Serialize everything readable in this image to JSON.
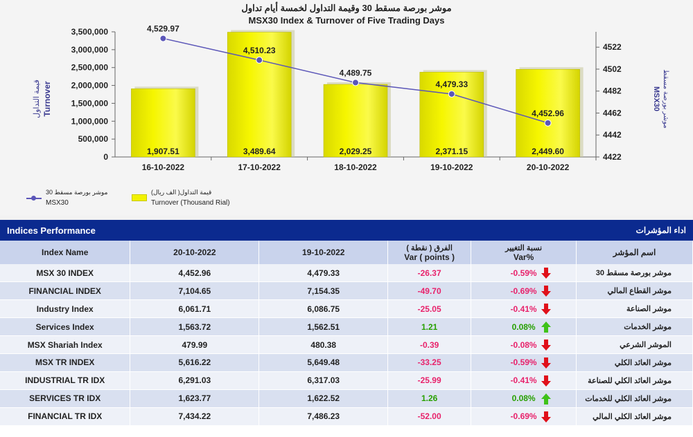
{
  "chart_data": {
    "type": "bar+line",
    "title_ar": "موشر بورصة مسقط 30 وقيمة التداول لخمسة أيام تداول",
    "title_en": "MSX30 Index & Turnover of Five Trading Days",
    "categories": [
      "16-10-2022",
      "17-10-2022",
      "18-10-2022",
      "19-10-2022",
      "20-10-2022"
    ],
    "bar_series": {
      "name": "Turnover (Thousand Rial)",
      "name_ar": "قيمة التداول( الف ريال)",
      "values": [
        1907.51,
        3489.64,
        2029.25,
        2371.15,
        2449.6
      ],
      "labels": [
        "1,907.51",
        "3,489.64",
        "2,029.25",
        "2,371.15",
        "2,449.60"
      ]
    },
    "line_series": {
      "name": "MSX30",
      "name_ar": "موشر بورصة مسقط 30",
      "values": [
        4529.97,
        4510.23,
        4489.75,
        4479.33,
        4452.96
      ],
      "labels": [
        "4,529.97",
        "4,510.23",
        "4,489.75",
        "4,479.33",
        "4,452.96"
      ]
    },
    "y_left": {
      "label_ar": "قيمة التداول",
      "label_en": "Turnover",
      "ticks": [
        "0",
        "500,000",
        "1,000,000",
        "1,500,000",
        "2,000,000",
        "2,500,000",
        "3,000,000",
        "3,500,000"
      ],
      "range": [
        0,
        3500000
      ]
    },
    "y_right": {
      "label_ar": "موشر بورصة مسقط",
      "label_en": "MSX30",
      "ticks": [
        "4422",
        "4442",
        "4462",
        "4482",
        "4502",
        "4522"
      ],
      "range": [
        4422,
        4536
      ]
    },
    "bar_scale_values": [
      1907510,
      3489640,
      2029250,
      2371150,
      2449600
    ]
  },
  "legend": {
    "msx_ar": "موشر بورصة مسقط 30",
    "msx_en": "MSX30",
    "turn_ar": "قيمة التداول( الف ريال)",
    "turn_en": "Turnover (Thousand Rial)"
  },
  "table": {
    "header_en": "Indices Performance",
    "header_ar": "اداء المؤشرات",
    "col_name": "Index Name",
    "col_date1": "20-10-2022",
    "col_date2": "19-10-2022",
    "col_var_ar": "الفرق ( نقطة )",
    "col_var_en": "Var ( points )",
    "col_pct_ar": "نسبة التغيير",
    "col_pct_en": "Var%",
    "col_name_ar": "اسم المؤشر",
    "rows": [
      {
        "name": "MSX 30 INDEX",
        "d1": "4,452.96",
        "d2": "4,479.33",
        "var": "-26.37",
        "pct": "-0.59%",
        "dir": "down",
        "ar": "موشر بورصة مسقط 30"
      },
      {
        "name": "FINANCIAL INDEX",
        "d1": "7,104.65",
        "d2": "7,154.35",
        "var": "-49.70",
        "pct": "-0.69%",
        "dir": "down",
        "ar": "موشر القطاع المالي"
      },
      {
        "name": "Industry Index",
        "d1": "6,061.71",
        "d2": "6,086.75",
        "var": "-25.05",
        "pct": "-0.41%",
        "dir": "down",
        "ar": "موشر الصناعة"
      },
      {
        "name": "Services Index",
        "d1": "1,563.72",
        "d2": "1,562.51",
        "var": "1.21",
        "pct": "0.08%",
        "dir": "up",
        "ar": "موشر الخدمات"
      },
      {
        "name": "MSX Shariah Index",
        "d1": "479.99",
        "d2": "480.38",
        "var": "-0.39",
        "pct": "-0.08%",
        "dir": "down",
        "ar": "الموشر الشرعي"
      },
      {
        "name": "MSX TR INDEX",
        "d1": "5,616.22",
        "d2": "5,649.48",
        "var": "-33.25",
        "pct": "-0.59%",
        "dir": "down",
        "ar": "موشر العائد الكلي"
      },
      {
        "name": "INDUSTRIAL TR IDX",
        "d1": "6,291.03",
        "d2": "6,317.03",
        "var": "-25.99",
        "pct": "-0.41%",
        "dir": "down",
        "ar": "موشر العائد الكلي للصناعة"
      },
      {
        "name": "SERVICES TR IDX",
        "d1": "1,623.77",
        "d2": "1,622.52",
        "var": "1.26",
        "pct": "0.08%",
        "dir": "up",
        "ar": "موشر العائد الكلي للخدمات"
      },
      {
        "name": "FINANCIAL TR IDX",
        "d1": "7,434.22",
        "d2": "7,486.23",
        "var": "-52.00",
        "pct": "-0.69%",
        "dir": "down",
        "ar": "موشر العائد الكلي المالي"
      }
    ]
  },
  "colors": {
    "bar": "#f2f200",
    "line": "#5b56b8",
    "header": "#0b2a8f",
    "neg": "#e8226b",
    "pos": "#28a000",
    "arrow_down": "#e0101a",
    "arrow_up": "#3fc21a"
  }
}
